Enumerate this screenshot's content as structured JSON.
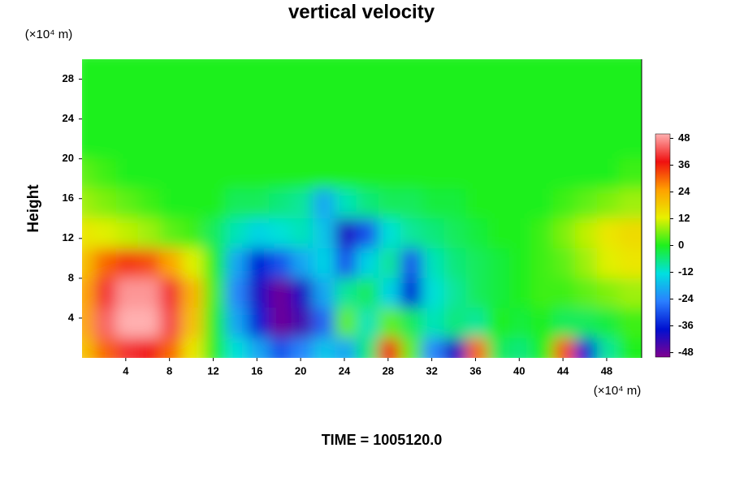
{
  "chart_data": {
    "type": "heatmap",
    "title": "vertical velocity",
    "y_unit": "(×10⁴ m)",
    "x_unit": "(×10⁴ m)",
    "ylabel": "Height",
    "footer": "TIME = 1005120.0",
    "xlim": [
      0,
      51.2
    ],
    "ylim": [
      0,
      30
    ],
    "xticks": [
      4,
      8,
      12,
      16,
      20,
      24,
      28,
      32,
      36,
      40,
      44,
      48
    ],
    "yticks": [
      4,
      8,
      12,
      16,
      20,
      24,
      28
    ],
    "clim": [
      -50,
      50
    ],
    "cticks": [
      -48,
      -36,
      -24,
      -12,
      0,
      12,
      24,
      36,
      48
    ],
    "colors": [
      "#800090",
      "#0010d0",
      "#2a7fff",
      "#00e0e0",
      "#1ef01e",
      "#e8f000",
      "#ffa000",
      "#f01010",
      "#ffb0b0"
    ],
    "x": [
      1,
      3,
      5,
      7,
      9,
      11,
      13,
      15,
      17,
      19,
      21,
      23,
      25,
      27,
      29,
      31,
      33,
      35,
      37,
      39,
      41,
      43,
      45,
      47,
      49,
      51
    ],
    "y": [
      1.5,
      4.5,
      7.5,
      10.5,
      13.5,
      16.5,
      19.5,
      22.5,
      25.5,
      28.5
    ],
    "z": [
      [
        20,
        30,
        40,
        38,
        30,
        14,
        0,
        -12,
        -20,
        -30,
        -24,
        -16,
        -20,
        -6,
        36,
        4,
        -24,
        -40,
        30,
        -4,
        -6,
        0,
        32,
        -36,
        -8,
        0
      ],
      [
        24,
        44,
        50,
        50,
        42,
        20,
        0,
        -20,
        -36,
        -48,
        -44,
        -28,
        4,
        -10,
        4,
        -4,
        -10,
        -6,
        -8,
        0,
        -2,
        0,
        -4,
        -4,
        -2,
        2
      ],
      [
        24,
        40,
        48,
        48,
        40,
        22,
        2,
        -24,
        -40,
        -48,
        -40,
        -20,
        -8,
        -4,
        -14,
        -36,
        -12,
        -8,
        -4,
        -2,
        0,
        2,
        2,
        4,
        6,
        8
      ],
      [
        20,
        30,
        34,
        32,
        24,
        12,
        0,
        -20,
        -36,
        -30,
        -20,
        -14,
        -30,
        -14,
        -8,
        -30,
        -10,
        -6,
        -4,
        -2,
        0,
        2,
        4,
        8,
        12,
        14
      ],
      [
        14,
        12,
        10,
        8,
        4,
        2,
        -4,
        -10,
        -14,
        -12,
        -10,
        -16,
        -40,
        -30,
        -12,
        -8,
        -6,
        -4,
        -2,
        0,
        0,
        2,
        6,
        10,
        14,
        16
      ],
      [
        8,
        6,
        4,
        2,
        0,
        0,
        0,
        -4,
        -4,
        -6,
        -8,
        -20,
        -10,
        -6,
        -4,
        -4,
        -2,
        -2,
        0,
        0,
        0,
        0,
        2,
        4,
        6,
        8
      ],
      [
        4,
        2,
        0,
        0,
        0,
        0,
        0,
        0,
        0,
        0,
        0,
        0,
        0,
        0,
        0,
        0,
        0,
        0,
        0,
        0,
        0,
        0,
        0,
        0,
        0,
        2
      ],
      [
        0,
        0,
        0,
        0,
        0,
        0,
        0,
        0,
        0,
        0,
        0,
        0,
        0,
        0,
        0,
        0,
        0,
        0,
        0,
        0,
        0,
        0,
        0,
        0,
        0,
        0
      ],
      [
        0,
        0,
        0,
        0,
        0,
        0,
        0,
        0,
        0,
        0,
        0,
        0,
        0,
        0,
        0,
        0,
        0,
        0,
        0,
        0,
        0,
        0,
        0,
        0,
        0,
        0
      ],
      [
        0,
        0,
        0,
        0,
        0,
        0,
        0,
        0,
        0,
        0,
        0,
        0,
        0,
        0,
        0,
        0,
        0,
        0,
        0,
        0,
        0,
        0,
        0,
        0,
        0,
        0
      ]
    ]
  }
}
